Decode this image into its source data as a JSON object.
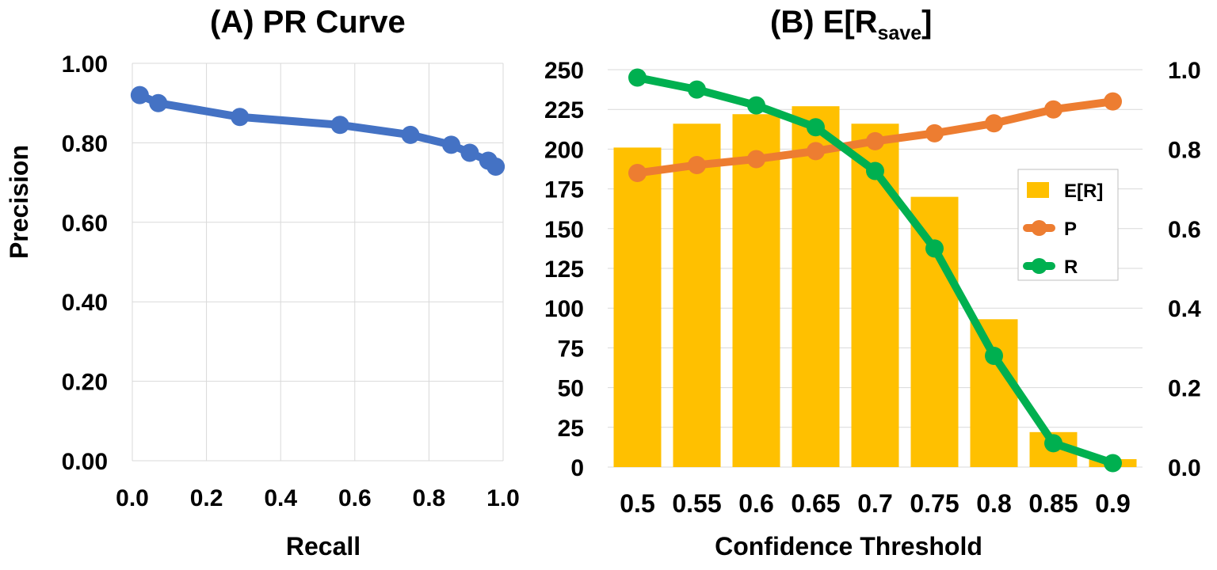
{
  "chart_data": [
    {
      "type": "line",
      "title": "(A) PR Curve",
      "xlabel": "Recall",
      "ylabel": "Precision",
      "xlim": [
        0,
        1
      ],
      "ylim": [
        0,
        1
      ],
      "grid": true,
      "color": "#4472C4",
      "x_ticks": [
        "0.0",
        "0.2",
        "0.4",
        "0.6",
        "0.8",
        "1.0"
      ],
      "y_ticks": [
        "0.00",
        "0.20",
        "0.40",
        "0.60",
        "0.80",
        "1.00"
      ],
      "x": [
        0.02,
        0.07,
        0.29,
        0.56,
        0.75,
        0.86,
        0.91,
        0.96,
        0.98
      ],
      "y": [
        0.92,
        0.9,
        0.865,
        0.845,
        0.82,
        0.795,
        0.775,
        0.755,
        0.74
      ]
    },
    {
      "type": "bar",
      "title_main": "(B) E[R",
      "title_sub": "save",
      "title_end": "]",
      "xlabel": "Confidence Threshold",
      "categories": [
        "0.5",
        "0.55",
        "0.6",
        "0.65",
        "0.7",
        "0.75",
        "0.8",
        "0.85",
        "0.9"
      ],
      "ylim": [
        0,
        250
      ],
      "y_ticks": [
        "0",
        "25",
        "50",
        "75",
        "100",
        "125",
        "150",
        "175",
        "200",
        "225",
        "250"
      ],
      "y2lim": [
        0,
        1
      ],
      "y2_ticks": [
        "0.0",
        "0.2",
        "0.4",
        "0.6",
        "0.8",
        "1.0"
      ],
      "grid": true,
      "legend_position": "right",
      "series": [
        {
          "name": "E[R]",
          "kind": "bar",
          "axis": "left",
          "color": "#FFC000",
          "values": [
            201,
            216,
            222,
            227,
            216,
            170,
            93,
            22,
            5
          ]
        },
        {
          "name": "P",
          "kind": "line",
          "axis": "right",
          "color": "#ED7D31",
          "values": [
            0.74,
            0.76,
            0.775,
            0.795,
            0.82,
            0.84,
            0.865,
            0.9,
            0.92
          ]
        },
        {
          "name": "R",
          "kind": "line",
          "axis": "right",
          "color": "#00B050",
          "values": [
            0.98,
            0.95,
            0.91,
            0.855,
            0.745,
            0.55,
            0.28,
            0.06,
            0.01
          ]
        }
      ]
    }
  ]
}
